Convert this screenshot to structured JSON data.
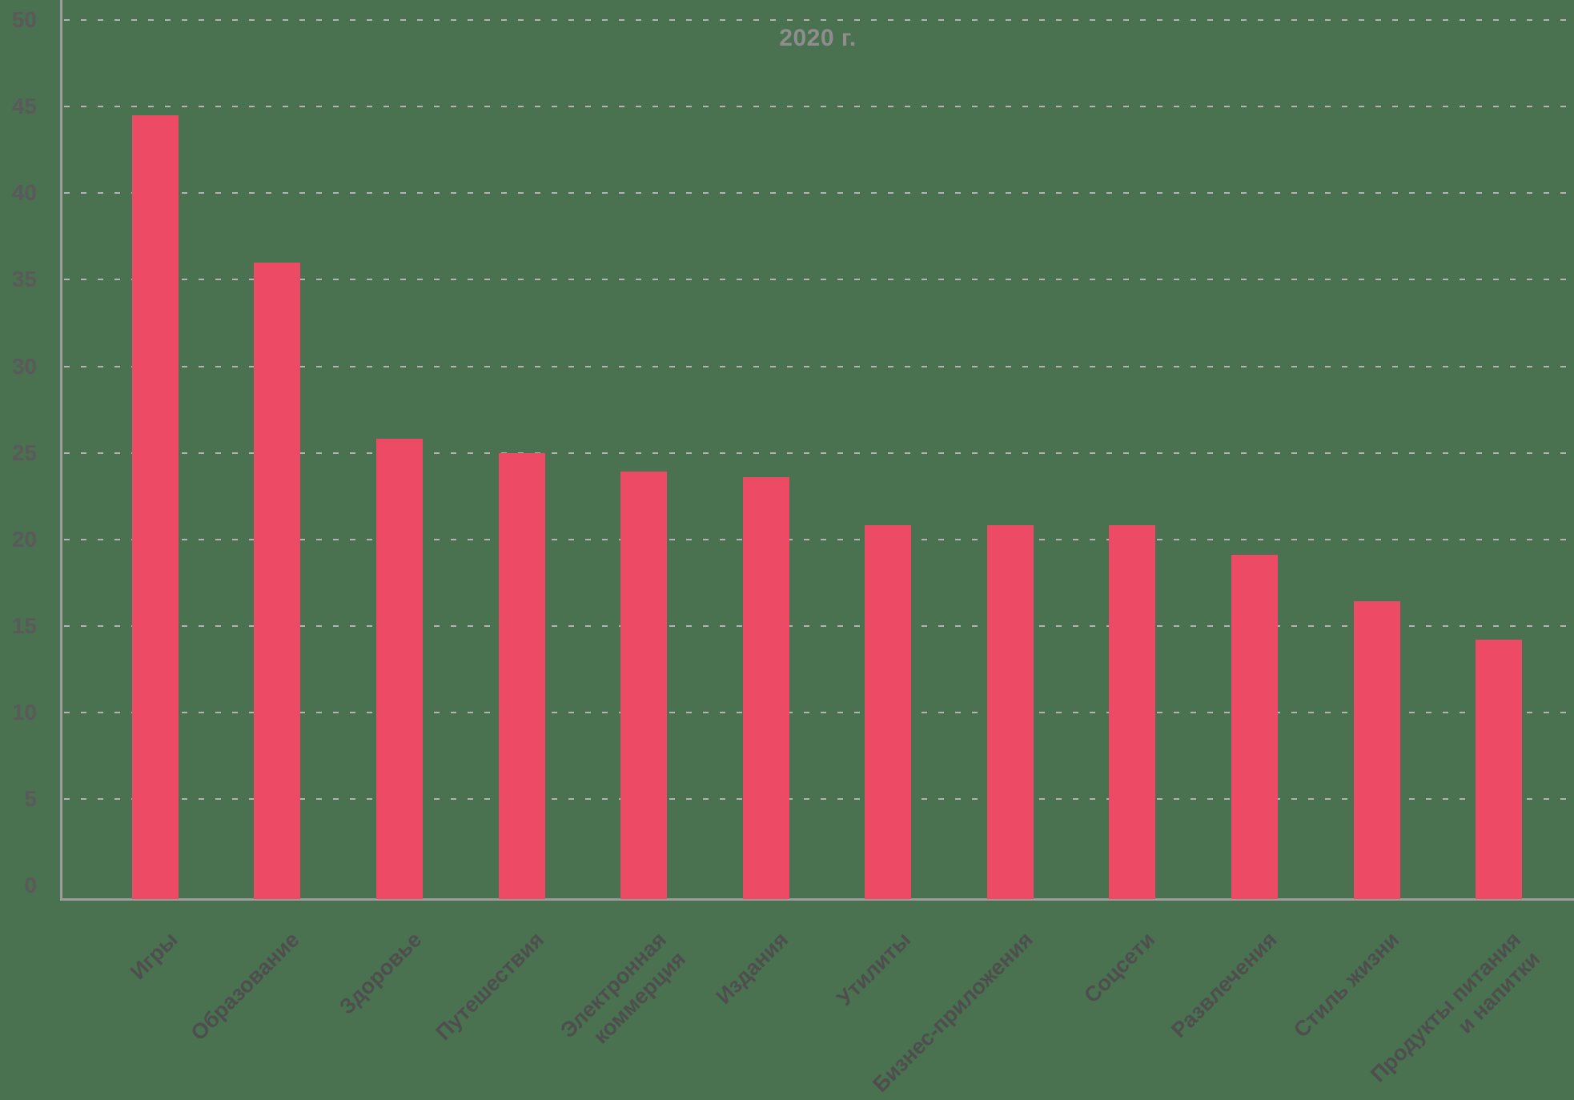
{
  "title": "2020 г.",
  "chart_data": {
    "type": "bar",
    "title": "2020 г.",
    "categories": [
      "Игры",
      "Образование",
      "Здоровье",
      "Путешествия",
      "Электронная коммерция",
      "Издания",
      "Утилиты",
      "Бизнес-приложения",
      "Соцсети",
      "Развлечения",
      "Стиль жизни",
      "Продукты питания и напитки"
    ],
    "values": [
      44.5,
      36,
      25.8,
      25,
      23.9,
      23.6,
      20.8,
      20.8,
      20.8,
      19.1,
      16.4,
      14.2
    ],
    "xlabel": "",
    "ylabel": "",
    "ylim": [
      0,
      50
    ],
    "yticks": [
      0,
      5,
      10,
      15,
      20,
      25,
      30,
      35,
      40,
      45,
      50
    ],
    "grid": "horizontal-dashed",
    "legend": "none",
    "bar_color": "#ED4A66"
  },
  "display": {
    "x_label_lines": [
      [
        "Игры"
      ],
      [
        "Образование"
      ],
      [
        "Здоровье"
      ],
      [
        "Путешествия"
      ],
      [
        "Электронная",
        "коммерция"
      ],
      [
        "Издания"
      ],
      [
        "Утилиты"
      ],
      [
        "Бизнес-приложения"
      ],
      [
        "Соцсети"
      ],
      [
        "Развлечения"
      ],
      [
        "Стиль жизни"
      ],
      [
        "Продукты питания",
        "и напитки"
      ]
    ]
  },
  "colors": {
    "background": "#4A7150",
    "bar": "#ED4A66",
    "gridline": "#B3B3B3",
    "axis": "#9C9C9C",
    "title": "#8E8E8E",
    "y_tick": "#5A5A5A",
    "x_tick": "#4E4E4E"
  }
}
